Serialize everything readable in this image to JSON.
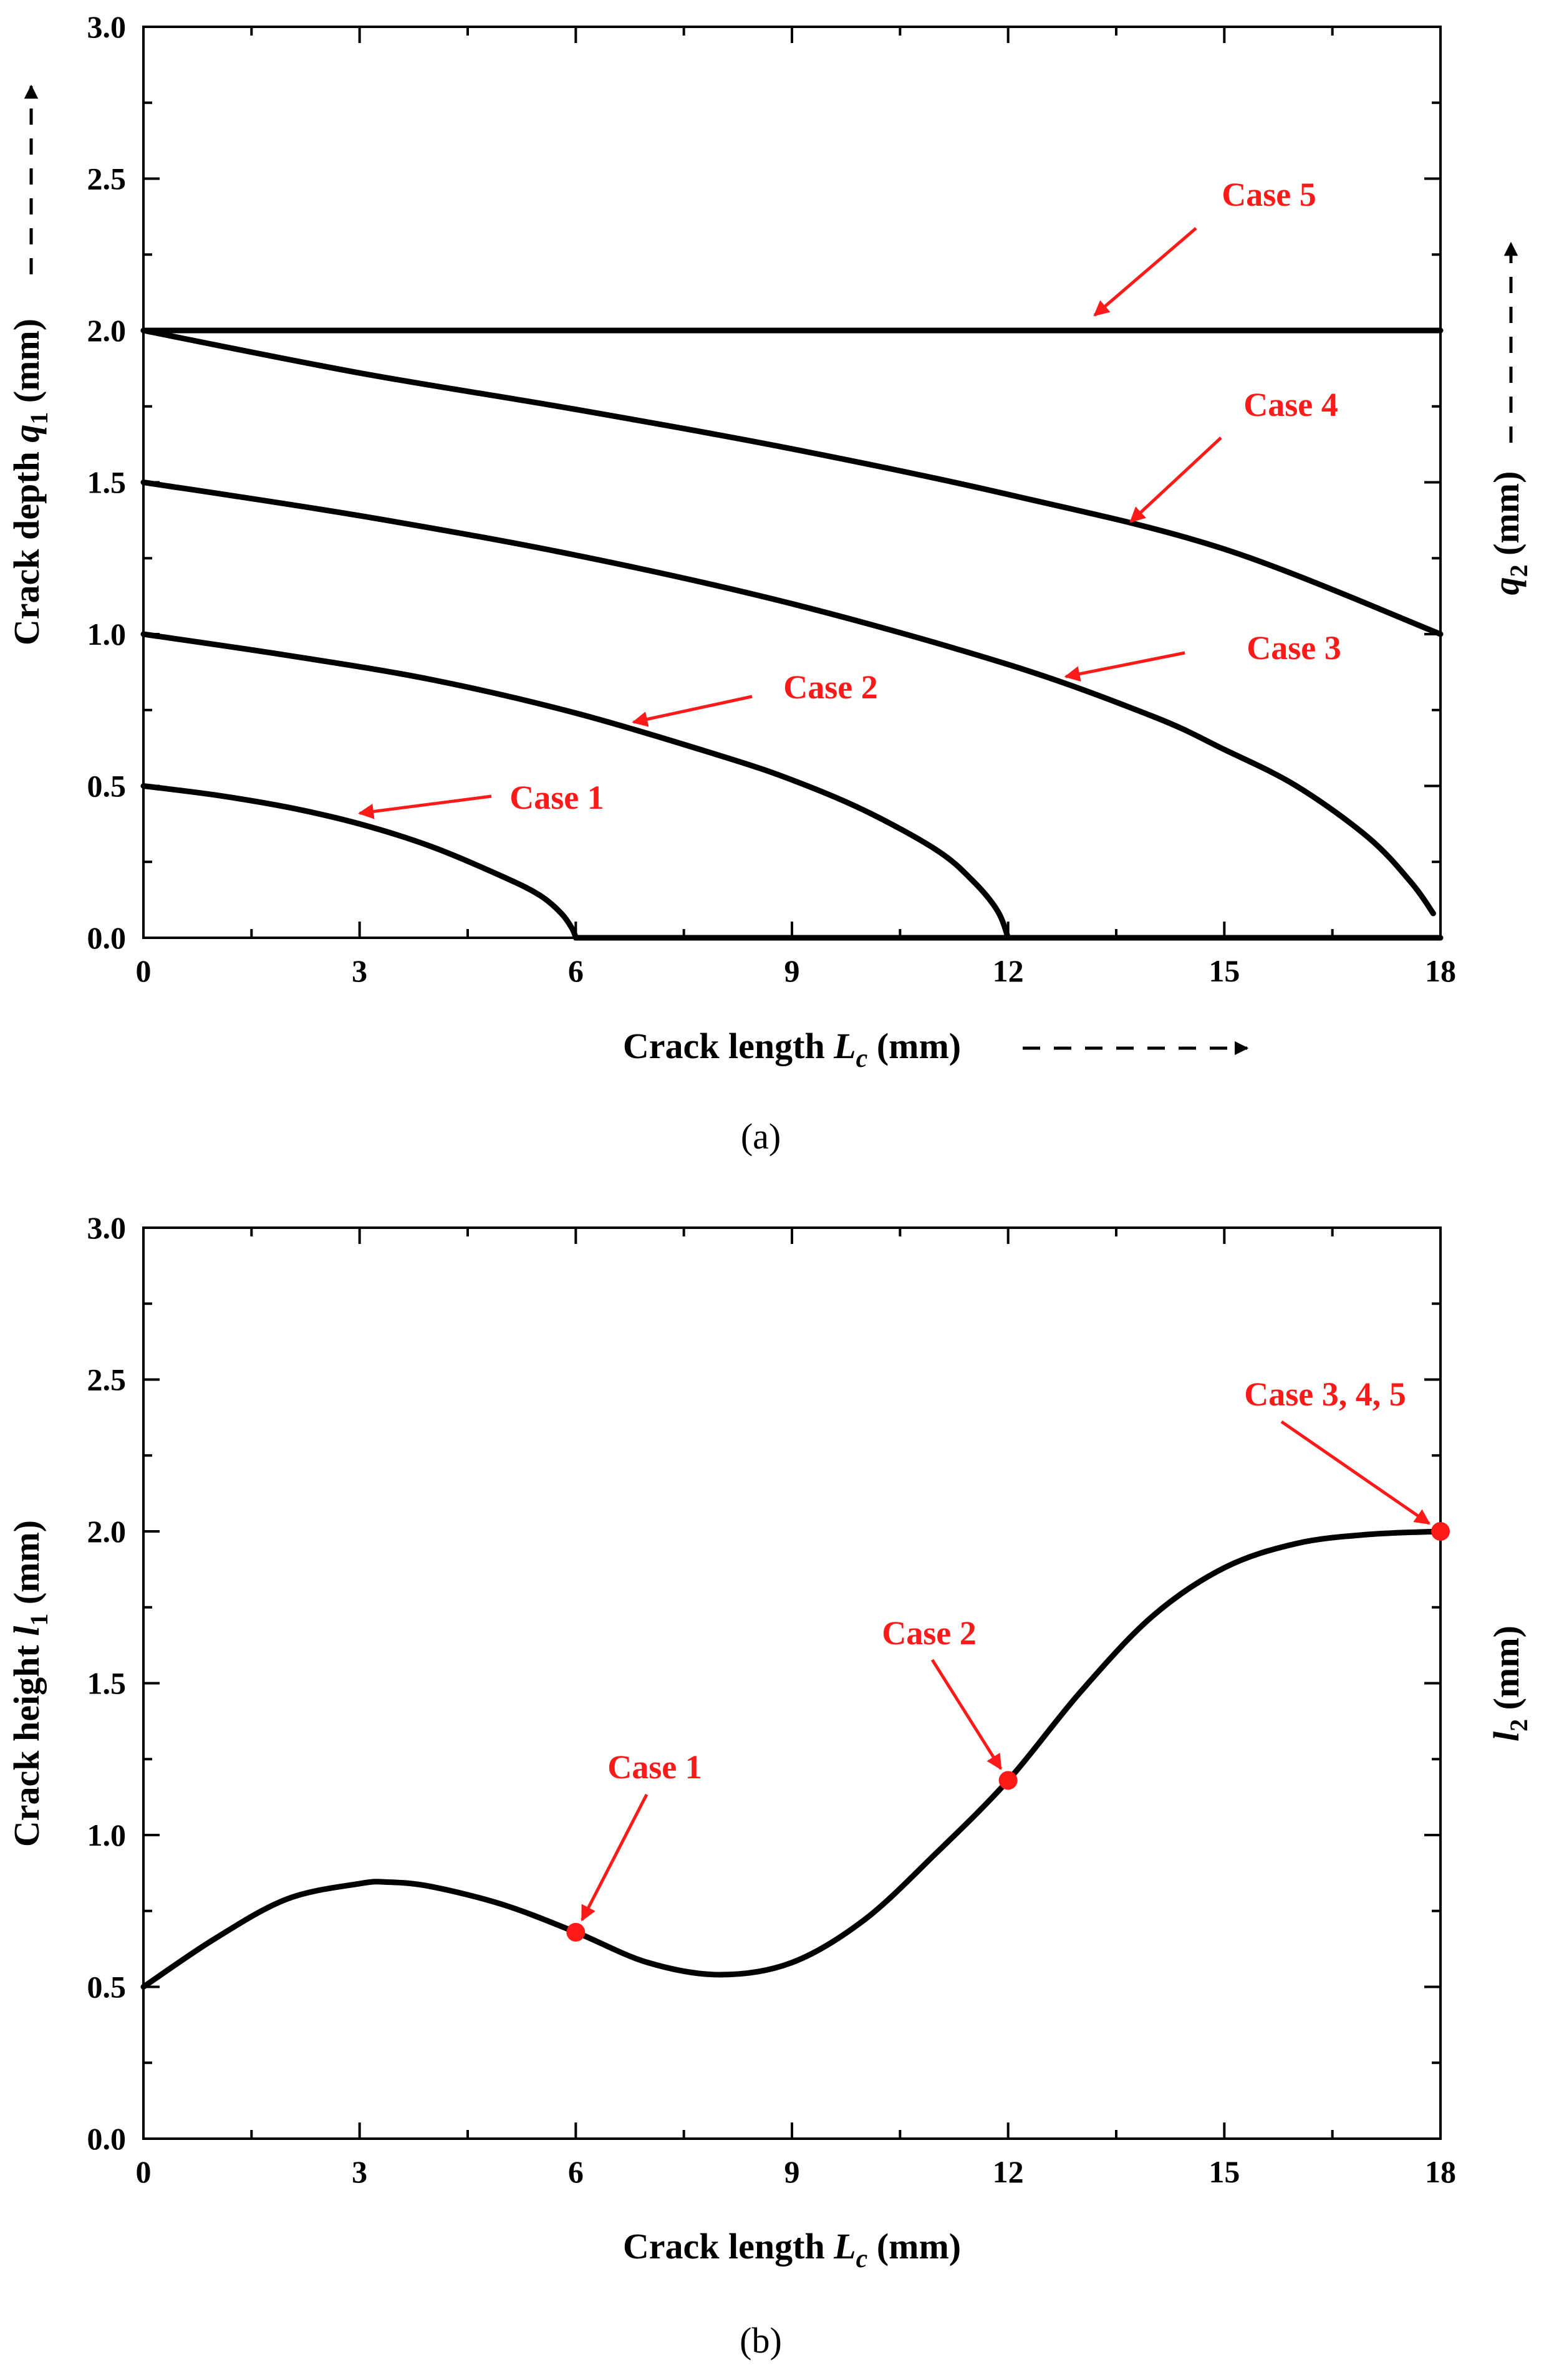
{
  "colors": {
    "curve": "#000000",
    "annotation": "#ff1a1a",
    "axis": "#000000"
  },
  "chart_data": [
    {
      "panel_label": "(a)",
      "type": "line",
      "title": "",
      "xlabel": {
        "main": "Crack length ",
        "var": "L",
        "sub": "c",
        "unit": " (mm)"
      },
      "ylabel": {
        "main": "Crack depth ",
        "var": "q",
        "sub": "1",
        "unit": " (mm)"
      },
      "y2label": {
        "var": "q",
        "sub": "2",
        "unit": " (mm)"
      },
      "xlim": [
        0,
        18
      ],
      "ylim": [
        0,
        3
      ],
      "xticks": [
        0,
        3,
        6,
        9,
        12,
        15,
        18
      ],
      "yticks": [
        "0.0",
        "0.5",
        "1.0",
        "1.5",
        "2.0",
        "2.5",
        "3.0"
      ],
      "ytick_values": [
        0,
        0.5,
        1.0,
        1.5,
        2.0,
        2.5,
        3.0
      ],
      "series": [
        {
          "name": "Case 1",
          "x": [
            0,
            1,
            2,
            3,
            4,
            5,
            5.5,
            5.8,
            5.95,
            6.0,
            18
          ],
          "y": [
            0.5,
            0.47,
            0.43,
            0.375,
            0.3,
            0.2,
            0.14,
            0.08,
            0.03,
            0.0,
            0.0
          ]
        },
        {
          "name": "Case 2",
          "x": [
            0,
            2,
            4,
            6,
            8,
            9,
            10,
            11,
            11.5,
            11.85,
            12.0
          ],
          "y": [
            1.0,
            0.93,
            0.85,
            0.74,
            0.6,
            0.52,
            0.42,
            0.29,
            0.19,
            0.09,
            0.0
          ]
        },
        {
          "name": "Case 3",
          "x": [
            0,
            3,
            6,
            9,
            12,
            14,
            15,
            16,
            17,
            17.6,
            17.9
          ],
          "y": [
            1.5,
            1.39,
            1.26,
            1.1,
            0.9,
            0.73,
            0.62,
            0.5,
            0.33,
            0.18,
            0.08
          ]
        },
        {
          "name": "Case 4",
          "x": [
            0,
            3,
            6,
            9,
            12,
            15,
            18
          ],
          "y": [
            2.0,
            1.86,
            1.74,
            1.61,
            1.46,
            1.28,
            1.0
          ]
        },
        {
          "name": "Case 5",
          "x": [
            0,
            18
          ],
          "y": [
            2.0,
            2.0
          ]
        }
      ],
      "annotations": [
        {
          "text": "Case 5",
          "arrow_to": [
            13.2,
            2.05
          ]
        },
        {
          "text": "Case 4",
          "arrow_to": [
            13.7,
            1.37
          ]
        },
        {
          "text": "Case 3",
          "arrow_to": [
            12.8,
            0.86
          ]
        },
        {
          "text": "Case 2",
          "arrow_to": [
            6.8,
            0.71
          ]
        },
        {
          "text": "Case 1",
          "arrow_to": [
            3.0,
            0.41
          ]
        }
      ]
    },
    {
      "panel_label": "(b)",
      "type": "line",
      "title": "",
      "xlabel": {
        "main": "Crack length ",
        "var": "L",
        "sub": "c",
        "unit": " (mm)"
      },
      "ylabel": {
        "main": "Crack height ",
        "var": "l",
        "sub": "1",
        "unit": " (mm)"
      },
      "y2label": {
        "var": "l",
        "sub": "2",
        "unit": " (mm)"
      },
      "xlim": [
        0,
        18
      ],
      "ylim": [
        0,
        3
      ],
      "xticks": [
        0,
        3,
        6,
        9,
        12,
        15,
        18
      ],
      "yticks": [
        "0.0",
        "0.5",
        "1.0",
        "1.5",
        "2.0",
        "2.5",
        "3.0"
      ],
      "ytick_values": [
        0,
        0.5,
        1.0,
        1.5,
        2.0,
        2.5,
        3.0
      ],
      "series": [
        {
          "name": "l",
          "x": [
            0,
            1,
            2,
            3,
            3.4,
            4,
            5,
            6,
            7,
            8,
            9,
            10,
            11,
            12,
            13,
            14,
            15,
            16,
            17,
            18
          ],
          "y": [
            0.5,
            0.66,
            0.79,
            0.84,
            0.845,
            0.83,
            0.77,
            0.68,
            0.58,
            0.54,
            0.58,
            0.72,
            0.94,
            1.18,
            1.47,
            1.72,
            1.88,
            1.96,
            1.99,
            2.0
          ]
        }
      ],
      "points": [
        {
          "label": "Case 1",
          "x": 6,
          "y": 0.68
        },
        {
          "label": "Case 2",
          "x": 12,
          "y": 1.18
        },
        {
          "label": "Case 3, 4, 5",
          "x": 18,
          "y": 2.0
        }
      ]
    }
  ]
}
